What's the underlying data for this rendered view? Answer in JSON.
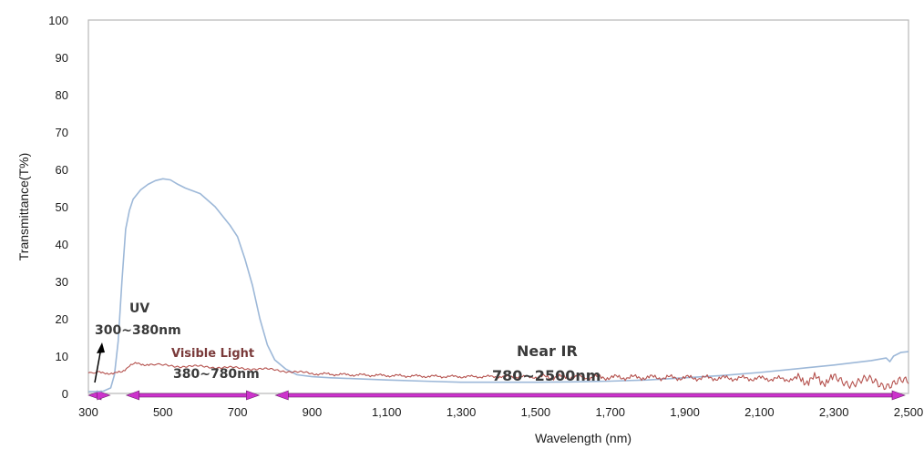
{
  "chart_data": {
    "type": "line",
    "xlabel": "Wavelength (nm)",
    "ylabel": "Transmittance(T%)",
    "xlim": [
      300,
      2500
    ],
    "ylim": [
      0,
      100
    ],
    "x_ticks": [
      300,
      500,
      700,
      900,
      1100,
      1300,
      1500,
      1700,
      1900,
      2100,
      2300,
      2500
    ],
    "x_tick_labels": [
      "300",
      "500",
      "700",
      "900",
      "1,100",
      "1,300",
      "1,500",
      "1,700",
      "1,900",
      "2,100",
      "2,300",
      "2,500"
    ],
    "y_ticks": [
      0,
      10,
      20,
      30,
      40,
      50,
      60,
      70,
      80,
      90,
      100
    ],
    "y_tick_labels": [
      "0",
      "10",
      "20",
      "30",
      "40",
      "50",
      "60",
      "70",
      "80",
      "90",
      "100"
    ],
    "grid": false,
    "series": [
      {
        "color": "#9db8d8",
        "x": [
          300,
          320,
          340,
          360,
          370,
          380,
          390,
          400,
          410,
          420,
          440,
          460,
          480,
          500,
          520,
          540,
          560,
          600,
          640,
          680,
          700,
          720,
          740,
          760,
          780,
          800,
          830,
          860,
          900,
          950,
          1000,
          1100,
          1200,
          1300,
          1400,
          1500,
          1600,
          1700,
          1800,
          1900,
          2000,
          2100,
          2200,
          2300,
          2400,
          2440,
          2450,
          2460,
          2480,
          2500
        ],
        "y": [
          0.5,
          0.5,
          0.6,
          1.5,
          5,
          14,
          30,
          44,
          49,
          52,
          54.5,
          56,
          57,
          57.5,
          57.2,
          56,
          55,
          53.5,
          50,
          45,
          42,
          36,
          29,
          20,
          13,
          9,
          6.5,
          5,
          4.5,
          4.2,
          4,
          3.6,
          3.3,
          3,
          3,
          3,
          3.1,
          3.3,
          3.6,
          4.2,
          4.8,
          5.6,
          6.6,
          7.6,
          8.8,
          9.5,
          8.5,
          10,
          11,
          11.2
        ]
      },
      {
        "color": "#b5524e",
        "x": [
          300,
          330,
          350,
          370,
          390,
          410,
          430,
          450,
          470,
          500,
          550,
          600,
          650,
          700,
          750,
          800,
          850,
          900,
          1000,
          1100,
          1200,
          1300,
          1400,
          1500,
          1600,
          1700,
          1800,
          1900,
          2000,
          2100,
          2200,
          2300,
          2350,
          2400,
          2450,
          2500
        ],
        "y": [
          5.2,
          5.5,
          5.5,
          5.3,
          5.8,
          7.5,
          8,
          7.8,
          7.6,
          7.5,
          7.3,
          7.2,
          7,
          6.8,
          6.6,
          6.3,
          5.8,
          5.3,
          5,
          4.8,
          4.6,
          4.5,
          4.5,
          4.4,
          4.4,
          4.3,
          4.3,
          4.2,
          4.1,
          4,
          3.8,
          3.5,
          3.3,
          3,
          2.8,
          2.6
        ]
      }
    ],
    "annotations": [
      {
        "label": "UV",
        "range": "300~380nm",
        "span": [
          300,
          380
        ]
      },
      {
        "label": "Visible Light",
        "range": "380~780nm",
        "span": [
          380,
          780
        ]
      },
      {
        "label": "Near IR",
        "range": "780~2500nm",
        "span": [
          780,
          2500
        ]
      }
    ],
    "band_arrow_color": "#cc33cc"
  }
}
